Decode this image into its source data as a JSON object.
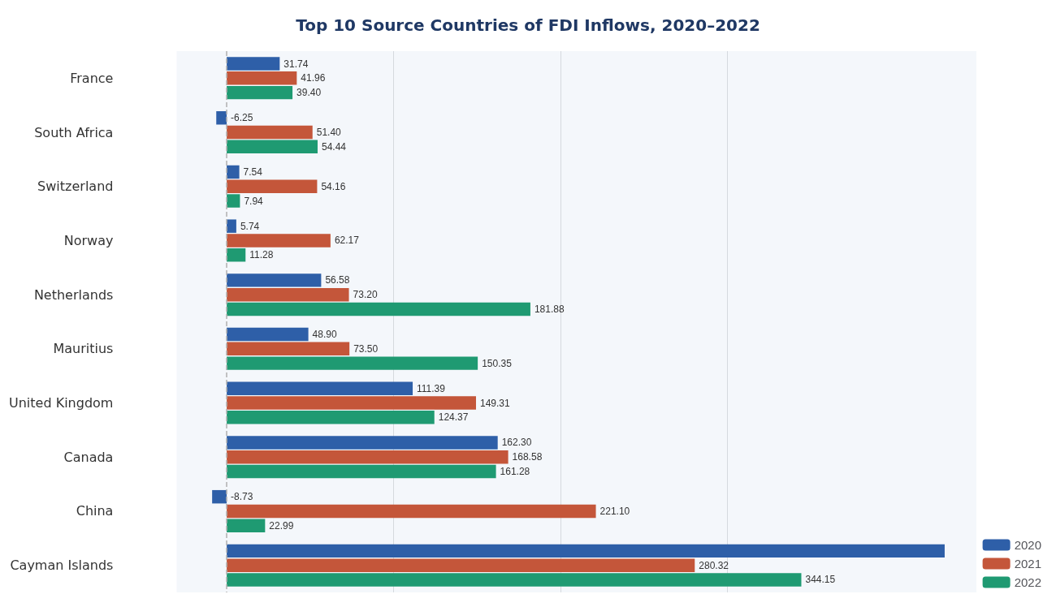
{
  "chart_data": {
    "type": "bar",
    "orientation": "horizontal",
    "title": "Top 10 Source Countries of FDI Inflows, 2020–2022",
    "categories": [
      "France",
      "South Africa",
      "Switzerland",
      "Norway",
      "Netherlands",
      "Mauritius",
      "United Kingdom",
      "Canada",
      "China",
      "Cayman Islands"
    ],
    "series": [
      {
        "name": "2020",
        "color": "#2e5fa8",
        "values": [
          31.74,
          -6.25,
          7.54,
          5.74,
          56.58,
          48.9,
          111.39,
          162.3,
          -8.73,
          430
        ],
        "value_labels": [
          "31.74",
          "-6.25",
          "7.54",
          "5.74",
          "56.58",
          "48.90",
          "111.39",
          "162.30",
          "-8.73",
          null
        ]
      },
      {
        "name": "2021",
        "color": "#c4563a",
        "values": [
          41.96,
          51.4,
          54.16,
          62.17,
          73.2,
          73.5,
          149.31,
          168.58,
          221.1,
          280.32
        ],
        "value_labels": [
          "41.96",
          "51.40",
          "54.16",
          "62.17",
          "73.20",
          "73.50",
          "149.31",
          "168.58",
          "221.10",
          "280.32"
        ]
      },
      {
        "name": "2022",
        "color": "#1f9a72",
        "values": [
          39.4,
          54.44,
          7.94,
          11.28,
          181.88,
          150.35,
          124.37,
          161.28,
          22.99,
          344.15
        ],
        "value_labels": [
          "39.40",
          "54.44",
          "7.94",
          "11.28",
          "181.88",
          "150.35",
          "124.37",
          "161.28",
          "22.99",
          "344.15"
        ]
      }
    ],
    "xlim": [
      -30,
      449
    ],
    "xticks": [
      {
        "value": 100,
        "label": null
      },
      {
        "value": 200,
        "label": null
      },
      {
        "value": 300,
        "label": null
      }
    ],
    "tick_labels": "y",
    "grid": "x",
    "legend": "bottom right",
    "ref_lines": [
      {
        "axis": "x",
        "value": 0,
        "label": null,
        "color": "#b0b0b0",
        "line_style": "dashed"
      }
    ]
  }
}
